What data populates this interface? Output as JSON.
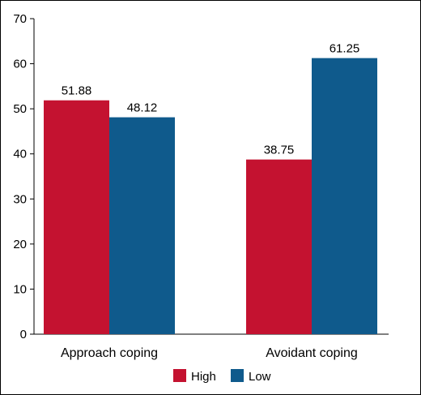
{
  "chart_data": {
    "type": "bar",
    "categories": [
      "Approach coping",
      "Avoidant coping"
    ],
    "series": [
      {
        "name": "High",
        "color": "#c41230",
        "values": [
          51.88,
          38.75
        ],
        "labels": [
          "51.88",
          "38.75"
        ]
      },
      {
        "name": "Low",
        "color": "#0f5a8c",
        "values": [
          48.12,
          61.25
        ],
        "labels": [
          "48.12",
          "61.25"
        ]
      }
    ],
    "yticks": [
      0,
      10,
      20,
      30,
      40,
      50,
      60,
      70
    ],
    "ylim": [
      0,
      70
    ],
    "grid": false,
    "legend_position": "bottom-center",
    "border": true
  }
}
